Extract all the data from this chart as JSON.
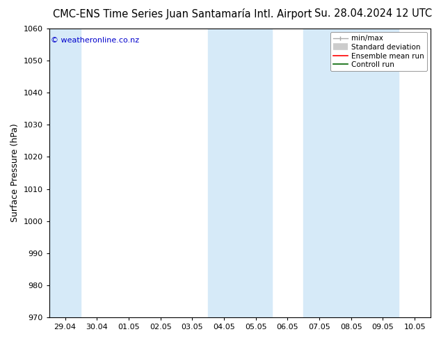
{
  "title_left": "CMC-ENS Time Series Juan Santamaría Intl. Airport",
  "title_right": "Su. 28.04.2024 12 UTC",
  "ylabel": "Surface Pressure (hPa)",
  "watermark": "© weatheronline.co.nz",
  "ylim": [
    970,
    1060
  ],
  "yticks": [
    970,
    980,
    990,
    1000,
    1010,
    1020,
    1030,
    1040,
    1050,
    1060
  ],
  "xtick_labels": [
    "29.04",
    "30.04",
    "01.05",
    "02.05",
    "03.05",
    "04.05",
    "05.05",
    "06.05",
    "07.05",
    "08.05",
    "09.05",
    "10.05"
  ],
  "shade_color": "#d6eaf8",
  "shade_intervals": [
    [
      0,
      1
    ],
    [
      5,
      7
    ],
    [
      8,
      9
    ],
    [
      9,
      10
    ],
    [
      10,
      11
    ]
  ],
  "bg_color": "#ffffff",
  "plot_bg_color": "#ffffff",
  "border_color": "#000000",
  "title_fontsize": 10.5,
  "axis_label_fontsize": 9,
  "tick_fontsize": 8,
  "watermark_color": "#0000cc",
  "legend_minmax_color": "#aaaaaa",
  "legend_stddev_color": "#cccccc",
  "legend_ensemble_color": "#ff0000",
  "legend_control_color": "#006400"
}
